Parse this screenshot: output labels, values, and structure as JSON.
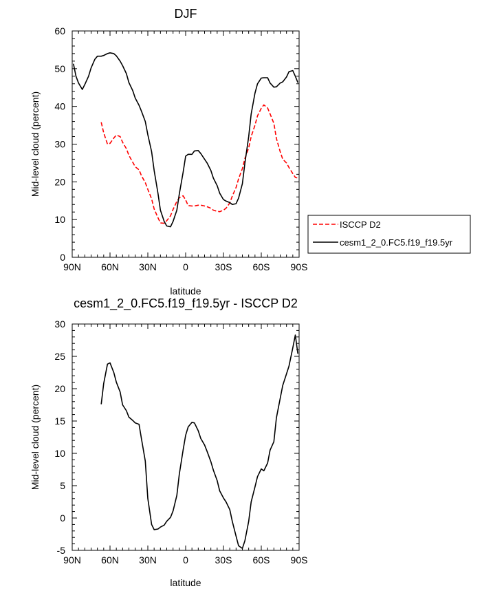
{
  "chart_data": [
    {
      "type": "line",
      "title": "DJF",
      "xlabel": "latitude",
      "ylabel": "Mid-level cloud (percent)",
      "xlim": [
        90,
        -90
      ],
      "ylim": [
        0,
        60
      ],
      "xticks": [
        90,
        60,
        30,
        0,
        -30,
        -60,
        -90
      ],
      "xtick_labels": [
        "90N",
        "60N",
        "30N",
        "0",
        "30S",
        "60S",
        "90S"
      ],
      "yticks": [
        0,
        10,
        20,
        30,
        40,
        50,
        60
      ],
      "ytick_labels": [
        "0",
        "10",
        "20",
        "30",
        "40",
        "50",
        "60"
      ],
      "grid": false,
      "legend_position": "right",
      "series": [
        {
          "name": "ISCCP D2",
          "color": "#ff0000",
          "dash": "dashed",
          "x": [
            67,
            65,
            62,
            60,
            57,
            55,
            52,
            50,
            47,
            45,
            42,
            40,
            37,
            35,
            32,
            30,
            27,
            25,
            22,
            20,
            17,
            15,
            12,
            10,
            7,
            5,
            2,
            0,
            -2,
            -5,
            -7,
            -10,
            -12,
            -15,
            -17,
            -20,
            -22,
            -25,
            -27,
            -30,
            -32,
            -35,
            -37,
            -40,
            -42,
            -45,
            -47,
            -50,
            -52,
            -55,
            -57,
            -60,
            -62,
            -65,
            -67,
            -70,
            -72,
            -75,
            -77,
            -80,
            -82,
            -85,
            -87,
            -89
          ],
          "y": [
            35.8,
            33,
            30,
            30.2,
            31.6,
            32.4,
            32,
            30.5,
            28.8,
            27,
            25.2,
            24,
            23.2,
            21.6,
            19.8,
            18,
            15.5,
            12.8,
            10.5,
            9.1,
            9,
            9.7,
            11,
            12.7,
            14.8,
            15.8,
            16.3,
            15.2,
            13.7,
            13.6,
            13.6,
            13.8,
            13.8,
            13.6,
            13.4,
            13,
            12.5,
            12.2,
            12.1,
            12.5,
            13,
            14.4,
            16.2,
            18.5,
            20.8,
            23.5,
            26.2,
            29,
            32,
            35,
            37.5,
            39.5,
            40.4,
            39.6,
            38,
            35.5,
            31.5,
            28,
            26,
            25,
            23.8,
            22.2,
            21.2,
            21
          ]
        },
        {
          "name": "cesm1_2_0.FC5.f19_f19.5yr",
          "color": "#000000",
          "dash": "solid",
          "x": [
            89,
            87,
            85,
            82,
            80,
            77,
            75,
            72,
            70,
            67,
            65,
            62,
            60,
            57,
            55,
            52,
            50,
            47,
            45,
            42,
            40,
            37,
            35,
            32,
            30,
            27,
            25,
            22,
            20,
            17,
            15,
            12,
            10,
            7,
            5,
            2,
            0,
            -2,
            -5,
            -7,
            -10,
            -12,
            -15,
            -17,
            -20,
            -22,
            -25,
            -27,
            -30,
            -32,
            -35,
            -37,
            -40,
            -42,
            -45,
            -47,
            -50,
            -52,
            -55,
            -57,
            -60,
            -62,
            -65,
            -67,
            -70,
            -72,
            -75,
            -77,
            -80,
            -82,
            -85,
            -87,
            -89
          ],
          "y": [
            51.3,
            48,
            46.2,
            44.5,
            45.8,
            48,
            50.2,
            52.5,
            53.3,
            53.3,
            53.5,
            54,
            54.2,
            54,
            53.4,
            52,
            50.8,
            48.7,
            46.3,
            44.2,
            42.2,
            40.3,
            38.7,
            36,
            32.5,
            28,
            23,
            17,
            12.5,
            9.5,
            8.3,
            8.1,
            9.5,
            12.5,
            16.8,
            22.5,
            26.8,
            27.3,
            27.3,
            28.2,
            28.3,
            27.5,
            26,
            25,
            23,
            21,
            19,
            17,
            15.3,
            14.9,
            14.5,
            14,
            14.2,
            15.7,
            19.5,
            25,
            32,
            38,
            43.5,
            46,
            47.5,
            47.6,
            47.6,
            46.2,
            45.1,
            45.2,
            46.2,
            46.5,
            47.8,
            49.2,
            49.5,
            48,
            46.3
          ]
        }
      ]
    },
    {
      "type": "line",
      "title": "cesm1_2_0.FC5.f19_f19.5yr - ISCCP D2",
      "xlabel": "latitude",
      "ylabel": "Mid-level cloud (percent)",
      "xlim": [
        90,
        -90
      ],
      "ylim": [
        -5,
        30
      ],
      "xticks": [
        90,
        60,
        30,
        0,
        -30,
        -60,
        -90
      ],
      "xtick_labels": [
        "90N",
        "60N",
        "30N",
        "0",
        "30S",
        "60S",
        "90S"
      ],
      "yticks": [
        -5,
        0,
        5,
        10,
        15,
        20,
        25,
        30
      ],
      "ytick_labels": [
        "-5",
        "0",
        "5",
        "10",
        "15",
        "20",
        "25",
        "30"
      ],
      "grid": false,
      "series": [
        {
          "color": "#000000",
          "dash": "solid",
          "x": [
            67,
            65,
            62,
            60,
            57,
            55,
            52,
            50,
            47,
            45,
            42,
            40,
            37,
            35,
            32,
            30,
            27,
            25,
            22,
            20,
            17,
            15,
            12,
            10,
            7,
            5,
            2,
            0,
            -2,
            -5,
            -7,
            -10,
            -12,
            -15,
            -17,
            -20,
            -22,
            -25,
            -27,
            -30,
            -32,
            -35,
            -37,
            -40,
            -42,
            -45,
            -47,
            -50,
            -52,
            -55,
            -57,
            -60,
            -62,
            -65,
            -67,
            -70,
            -72,
            -75,
            -77,
            -80,
            -82,
            -85,
            -87,
            -89
          ],
          "y": [
            17.6,
            20.8,
            23.8,
            24,
            22.5,
            21,
            19.5,
            17.5,
            16.6,
            15.6,
            15.1,
            14.7,
            14.5,
            12.2,
            8.8,
            3,
            -1,
            -1.8,
            -1.7,
            -1.4,
            -1.1,
            -0.5,
            0.1,
            1.1,
            3.5,
            6.8,
            10.5,
            12.8,
            14.1,
            14.8,
            14.7,
            13.5,
            12.3,
            11.3,
            10.3,
            8.7,
            7.4,
            5.8,
            4.2,
            3.1,
            2.5,
            1.3,
            -0.5,
            -2.8,
            -4.3,
            -4.7,
            -3.5,
            -0.5,
            2.5,
            4.8,
            6.4,
            7.6,
            7.3,
            8.5,
            10.5,
            11.8,
            15.5,
            18.5,
            20.5,
            22.3,
            23.5,
            26.3,
            28.3,
            25.4
          ]
        }
      ]
    }
  ]
}
